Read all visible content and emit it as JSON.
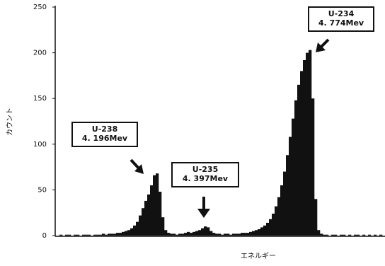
{
  "chart_data": {
    "type": "bar",
    "y_label": "カウント",
    "x_label": "エネルギー",
    "ylim": [
      0,
      250
    ],
    "yticks": [
      0,
      50,
      100,
      150,
      200,
      250
    ],
    "color": "#111111",
    "values": [
      0,
      1,
      0,
      1,
      1,
      0,
      1,
      1,
      0,
      1,
      1,
      1,
      0,
      1,
      1,
      1,
      2,
      1,
      2,
      2,
      2,
      3,
      3,
      4,
      5,
      6,
      8,
      11,
      15,
      22,
      30,
      38,
      45,
      55,
      66,
      68,
      48,
      20,
      6,
      3,
      2,
      2,
      1,
      2,
      2,
      3,
      4,
      3,
      4,
      5,
      6,
      8,
      10,
      9,
      5,
      3,
      2,
      2,
      1,
      2,
      2,
      1,
      2,
      2,
      2,
      3,
      3,
      3,
      4,
      5,
      6,
      7,
      9,
      11,
      14,
      18,
      24,
      32,
      42,
      55,
      70,
      88,
      108,
      128,
      148,
      165,
      180,
      192,
      200,
      203,
      150,
      40,
      6,
      2,
      1,
      1,
      0,
      1,
      1,
      0,
      1,
      1,
      0,
      1,
      0,
      1,
      1,
      0,
      1,
      0,
      1,
      0,
      1,
      0,
      1,
      0
    ],
    "annotations": [
      {
        "lines": [
          "U-238",
          "4. 196Mev"
        ]
      },
      {
        "lines": [
          "U-235",
          "4. 397Mev"
        ]
      },
      {
        "lines": [
          "U-234",
          "4. 774Mev"
        ]
      }
    ]
  }
}
